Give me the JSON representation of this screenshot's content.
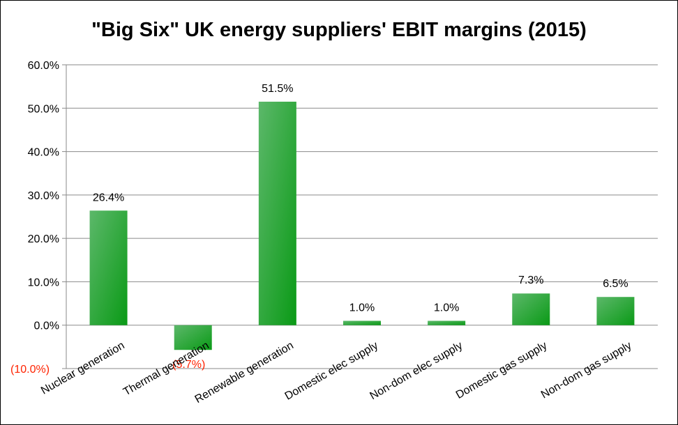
{
  "chart_data": {
    "type": "bar",
    "title": "\"Big Six\" UK energy suppliers' EBIT margins (2015)",
    "categories": [
      "Nuclear generation",
      "Thermal generation",
      "Renewable generation",
      "Domestic elec supply",
      "Non-dom elec supply",
      "Domestic gas supply",
      "Non-dom gas supply"
    ],
    "values": [
      26.4,
      -5.7,
      51.5,
      1.0,
      1.0,
      7.3,
      6.5
    ],
    "data_labels": [
      "26.4%",
      "(5.7%)",
      "51.5%",
      "1.0%",
      "1.0%",
      "7.3%",
      "6.5%"
    ],
    "y_ticks": [
      -10,
      0,
      10,
      20,
      30,
      40,
      50,
      60
    ],
    "y_tick_labels": [
      "(10.0%)",
      "0.0%",
      "10.0%",
      "20.0%",
      "30.0%",
      "40.0%",
      "50.0%",
      "60.0%"
    ],
    "ylim": [
      -10,
      60
    ],
    "xlabel": "",
    "ylabel": "",
    "grid": true,
    "bar_color": "#0a9a16",
    "bar_color_light": "#5cb86a",
    "negative_label_color": "#ff2200"
  }
}
